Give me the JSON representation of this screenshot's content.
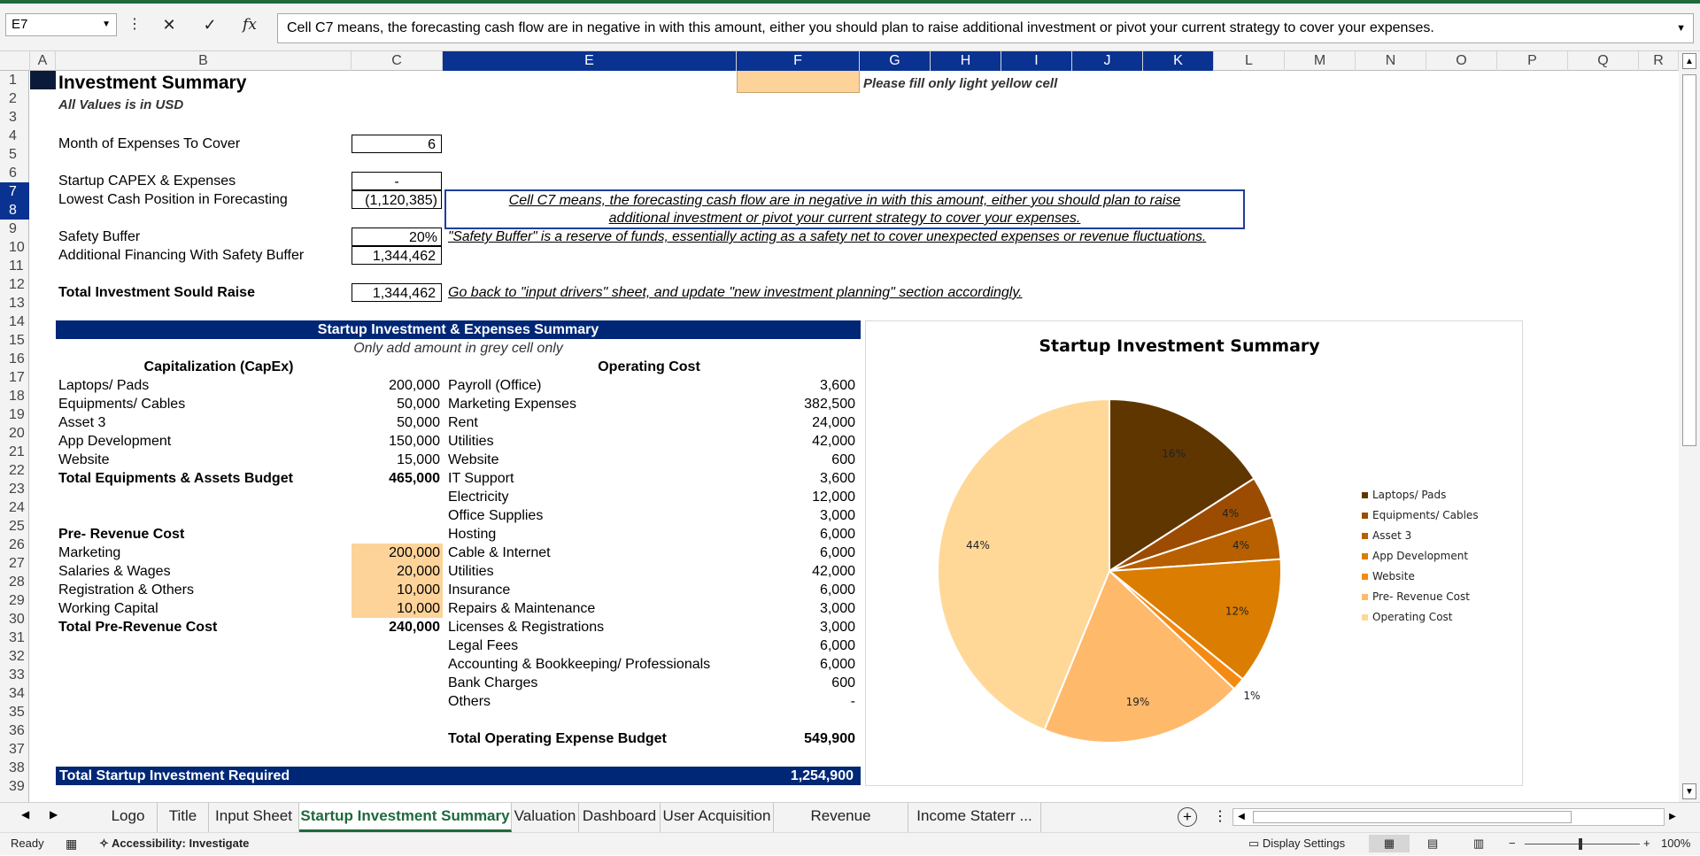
{
  "formula_bar": {
    "name_box": "E7",
    "formula": "Cell C7 means, the forecasting cash flow are in negative in with this amount, either you should plan to raise additional investment or pivot your current strategy to cover your expenses."
  },
  "columns": [
    "A",
    "B",
    "C",
    "E",
    "F",
    "G",
    "H",
    "I",
    "J",
    "K",
    "L",
    "M",
    "N",
    "O",
    "P",
    "Q",
    "R"
  ],
  "rows": [
    "1",
    "2",
    "3",
    "4",
    "5",
    "6",
    "7",
    "8",
    "9",
    "10",
    "11",
    "12",
    "13",
    "14",
    "15",
    "16",
    "17",
    "18",
    "19",
    "20",
    "21",
    "22",
    "23",
    "24",
    "25",
    "26",
    "27",
    "28",
    "29",
    "30",
    "31",
    "32",
    "33",
    "34",
    "35",
    "36",
    "37",
    "38",
    "39"
  ],
  "header": {
    "title": "Investment Summary",
    "subtitle": "All Values is in USD",
    "fill_note": "Please fill only light yellow cell"
  },
  "summary": {
    "months_label": "Month of Expenses To Cover",
    "months_value": "6",
    "capex_label": "Startup CAPEX & Expenses",
    "capex_value": "-",
    "lowest_label": "Lowest Cash Position in Forecasting",
    "lowest_value": "(1,120,385)",
    "note_line1": "Cell C7 means, the forecasting cash flow are in negative in with this amount, either you should plan to raise",
    "note_line2": "additional investment or pivot your current strategy to cover your expenses.",
    "buffer_label": "Safety Buffer",
    "buffer_value": "20%",
    "buffer_note": "\"Safety Buffer\" is a reserve of funds, essentially acting as a safety net to cover unexpected expenses or revenue fluctuations.",
    "financing_label": "Additional Financing With Safety Buffer",
    "financing_value": "1,344,462",
    "total_label": "Total Investment Sould Raise",
    "total_value": "1,344,462",
    "total_note": "Go back to \"input drivers\" sheet, and update \"new investment planning\" section accordingly."
  },
  "table": {
    "banner": "Startup Investment & Expenses Summary",
    "instruction": "Only add amount in grey cell only",
    "capex_header": "Capitalization (CapEx)",
    "opex_header": "Operating Cost",
    "capex_items": [
      {
        "label": "Laptops/ Pads",
        "value": "200,000"
      },
      {
        "label": "Equipments/ Cables",
        "value": "50,000"
      },
      {
        "label": "Asset 3",
        "value": "50,000"
      },
      {
        "label": "App Development",
        "value": "150,000"
      },
      {
        "label": "Website",
        "value": "15,000"
      }
    ],
    "capex_total_label": "Total Equipments & Assets Budget",
    "capex_total_value": "465,000",
    "prerev_header": "Pre- Revenue Cost",
    "prerev_items": [
      {
        "label": "Marketing",
        "value": "200,000"
      },
      {
        "label": "Salaries & Wages",
        "value": "20,000"
      },
      {
        "label": "Registration & Others",
        "value": "10,000"
      },
      {
        "label": "Working Capital",
        "value": "10,000"
      }
    ],
    "prerev_total_label": "Total Pre-Revenue Cost",
    "prerev_total_value": "240,000",
    "opex_items": [
      {
        "label": "Payroll (Office)",
        "value": "3,600"
      },
      {
        "label": "Marketing Expenses",
        "value": "382,500"
      },
      {
        "label": "Rent",
        "value": "24,000"
      },
      {
        "label": "Utilities",
        "value": "42,000"
      },
      {
        "label": "Website",
        "value": "600"
      },
      {
        "label": "IT Support",
        "value": "3,600"
      },
      {
        "label": "Electricity",
        "value": "12,000"
      },
      {
        "label": "Office Supplies",
        "value": "3,000"
      },
      {
        "label": "Hosting",
        "value": "6,000"
      },
      {
        "label": "Cable & Internet",
        "value": "6,000"
      },
      {
        "label": "Utilities",
        "value": "42,000"
      },
      {
        "label": "Insurance",
        "value": "6,000"
      },
      {
        "label": "Repairs & Maintenance",
        "value": "3,000"
      },
      {
        "label": "Licenses & Registrations",
        "value": "3,000"
      },
      {
        "label": "Legal Fees",
        "value": "6,000"
      },
      {
        "label": "Accounting & Bookkeeping/ Professionals",
        "value": "6,000"
      },
      {
        "label": "Bank Charges",
        "value": "600"
      },
      {
        "label": "Others",
        "value": "-"
      }
    ],
    "opex_total_label": "Total Operating Expense Budget",
    "opex_total_value": "549,900",
    "grand_total_label": "Total Startup Investment Required",
    "grand_total_value": "1,254,900"
  },
  "chart_data": {
    "type": "pie",
    "title": "Startup Investment Summary",
    "categories": [
      "Laptops/ Pads",
      "Equipments/ Cables",
      "Asset 3",
      "App Development",
      "Website",
      "Pre- Revenue Cost",
      "Operating Cost"
    ],
    "values": [
      200000,
      50000,
      50000,
      150000,
      15000,
      240000,
      549900
    ],
    "labels": [
      "16%",
      "4%",
      "4%",
      "12%",
      "1%",
      "19%",
      "44%"
    ],
    "colors": [
      "#603600",
      "#9c4c00",
      "#b86000",
      "#db7d00",
      "#f58a12",
      "#ffb96b",
      "#ffd898"
    ],
    "legend": "right"
  },
  "sheet_tabs": [
    "Logo",
    "Title",
    "Input Sheet",
    "Startup Investment Summary",
    "Valuation",
    "Dashboard",
    "User Acquisition",
    "Revenue Breakdown",
    "Income Staterr ..."
  ],
  "active_tab": "Startup Investment Summary",
  "status_bar": {
    "ready": "Ready",
    "accessibility": "Accessibility: Investigate",
    "display_settings": "Display Settings",
    "zoom": "100%"
  }
}
